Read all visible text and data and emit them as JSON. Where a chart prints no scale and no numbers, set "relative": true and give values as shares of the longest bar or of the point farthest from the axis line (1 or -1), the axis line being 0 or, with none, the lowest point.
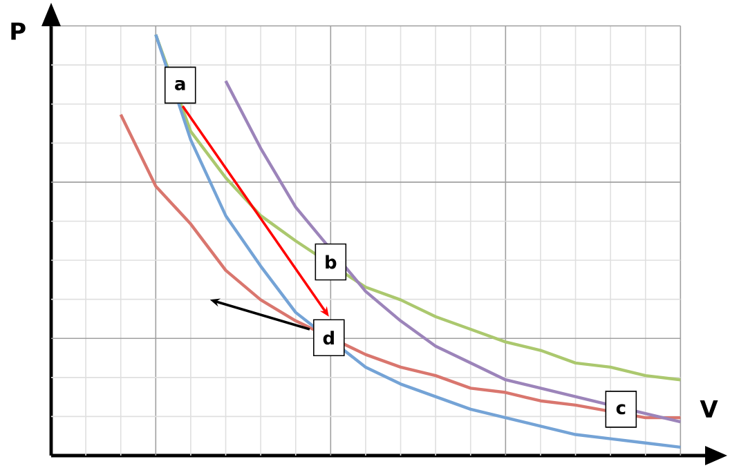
{
  "chart_data": {
    "type": "line",
    "relative": true,
    "xlabel": "V",
    "ylabel": "P",
    "grid": true,
    "categories": [
      null,
      null,
      null,
      null,
      null,
      null,
      null,
      null,
      null,
      null,
      null,
      null,
      null,
      null,
      null,
      null,
      null,
      null
    ],
    "series": [
      {
        "color": "#d9766e",
        "values": [
          null,
          0.81,
          0.64,
          0.55,
          0.44,
          0.37,
          0.32,
          null,
          0.24,
          0.21,
          0.19,
          0.16,
          0.15,
          0.13,
          0.12,
          null,
          0.09,
          0.09
        ]
      },
      {
        "color": "#abc86e",
        "values": [
          null,
          null,
          1.0,
          0.77,
          0.66,
          0.57,
          0.51,
          null,
          0.4,
          0.37,
          0.33,
          0.3,
          0.27,
          0.25,
          0.22,
          0.21,
          0.19,
          0.18
        ]
      },
      {
        "color": "#9c84ba",
        "values": [
          null,
          null,
          null,
          null,
          0.89,
          0.73,
          0.59,
          null,
          0.39,
          0.32,
          0.26,
          0.22,
          0.18,
          0.16,
          0.14,
          null,
          0.1,
          0.08
        ]
      },
      {
        "color": "#74a3d6",
        "values": [
          null,
          null,
          1.0,
          0.75,
          0.57,
          0.45,
          0.34,
          null,
          0.21,
          0.17,
          0.14,
          0.11,
          0.09,
          0.07,
          0.05,
          0.04,
          0.03,
          0.02
        ]
      }
    ],
    "annotations": [
      "a",
      "b",
      "c",
      "d"
    ]
  }
}
